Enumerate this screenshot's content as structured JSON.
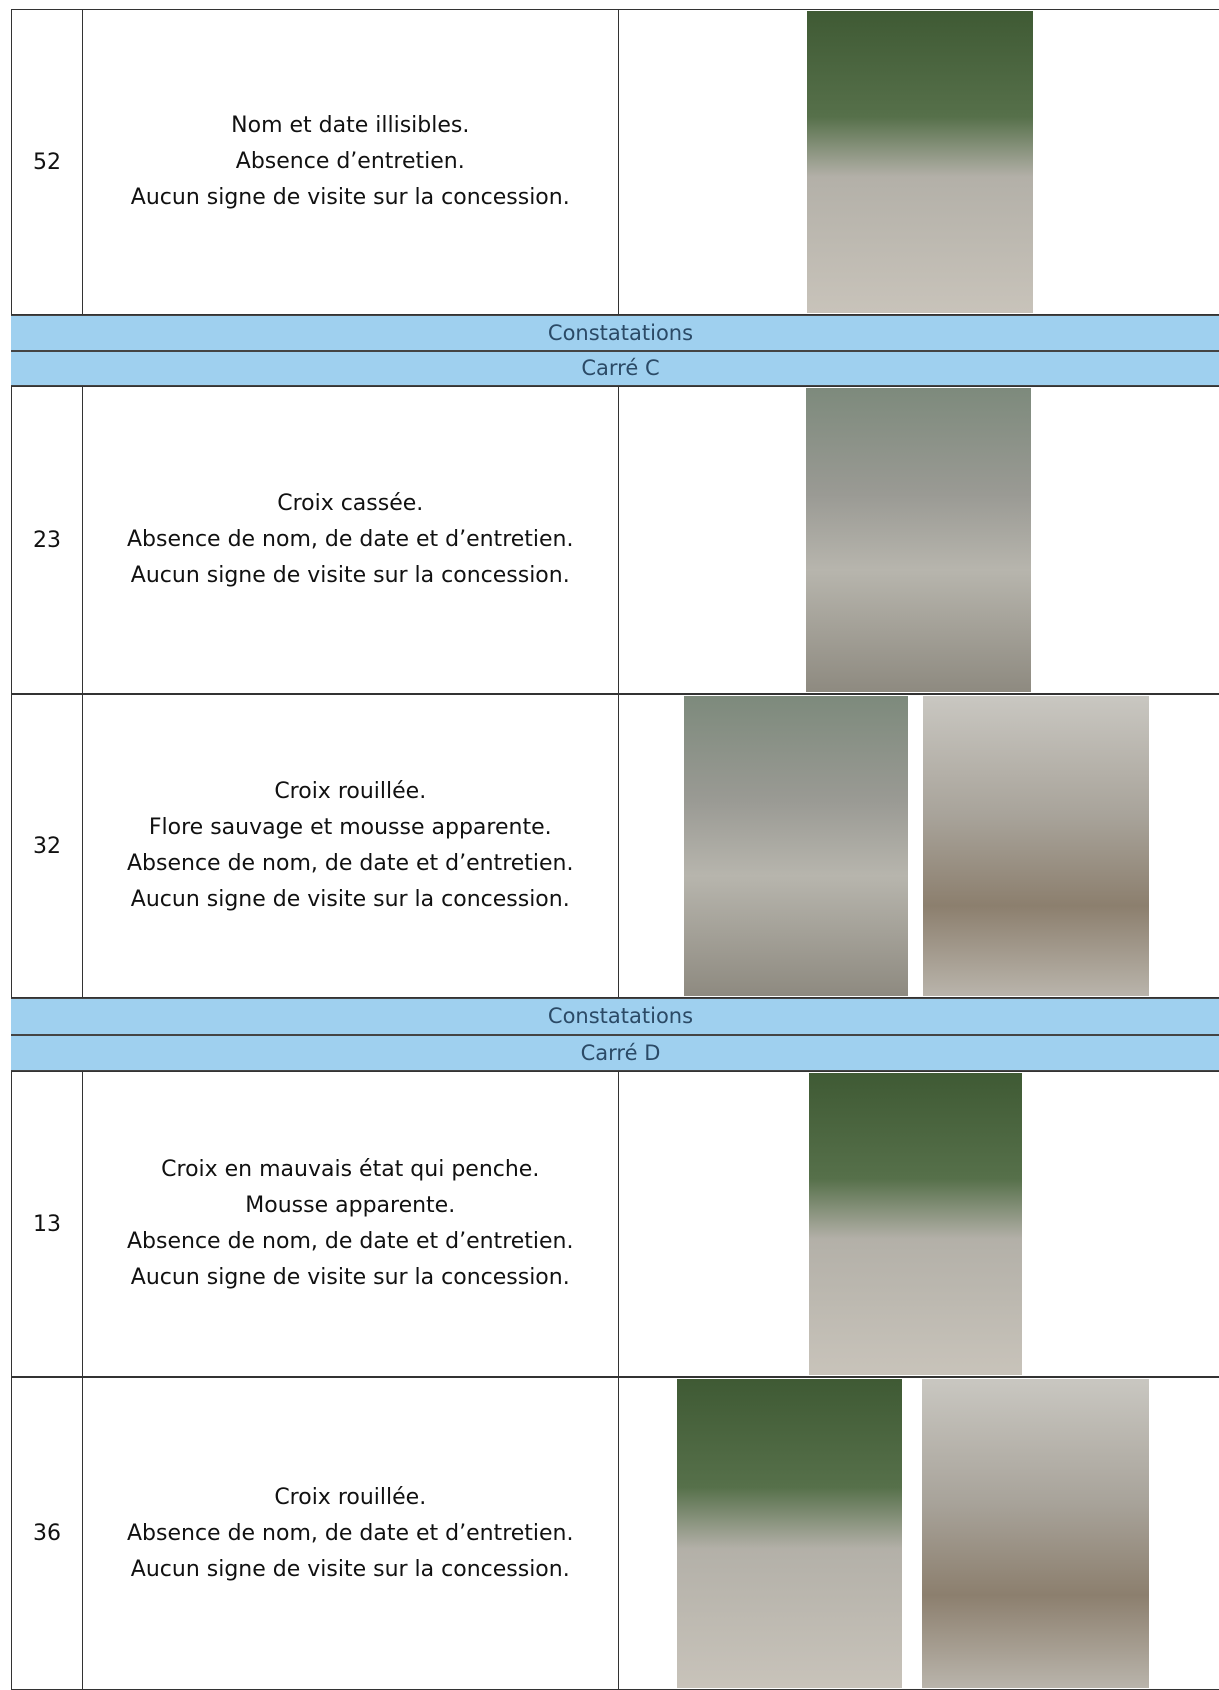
{
  "table": {
    "rows": [
      {
        "number": "52",
        "lines": [
          "Nom et date illisibles.",
          "Absence d’entretien.",
          "Aucun signe de visite sur la concession."
        ]
      },
      {
        "heading": "Constatations",
        "subheading": "Carré C"
      },
      {
        "number": "23",
        "lines": [
          "Croix cassée.",
          "Absence de nom, de date et d’entretien.",
          "Aucun signe de visite sur la concession."
        ]
      },
      {
        "number": "32",
        "lines": [
          "Croix rouillée.",
          "Flore sauvage et mousse apparente.",
          "Absence de nom, de date et d’entretien.",
          "Aucun signe de visite sur la concession."
        ]
      },
      {
        "heading": "Constatations",
        "subheading": "Carré D"
      },
      {
        "number": "13",
        "lines": [
          "Croix en mauvais état qui penche.",
          "Mousse apparente.",
          "Absence de nom, de date et d’entretien.",
          "Aucun signe de visite sur la concession."
        ]
      },
      {
        "number": "36",
        "lines": [
          "Croix rouillée.",
          "Absence de nom, de date et d’entretien.",
          "Aucun signe de visite sur la concession."
        ]
      }
    ]
  }
}
